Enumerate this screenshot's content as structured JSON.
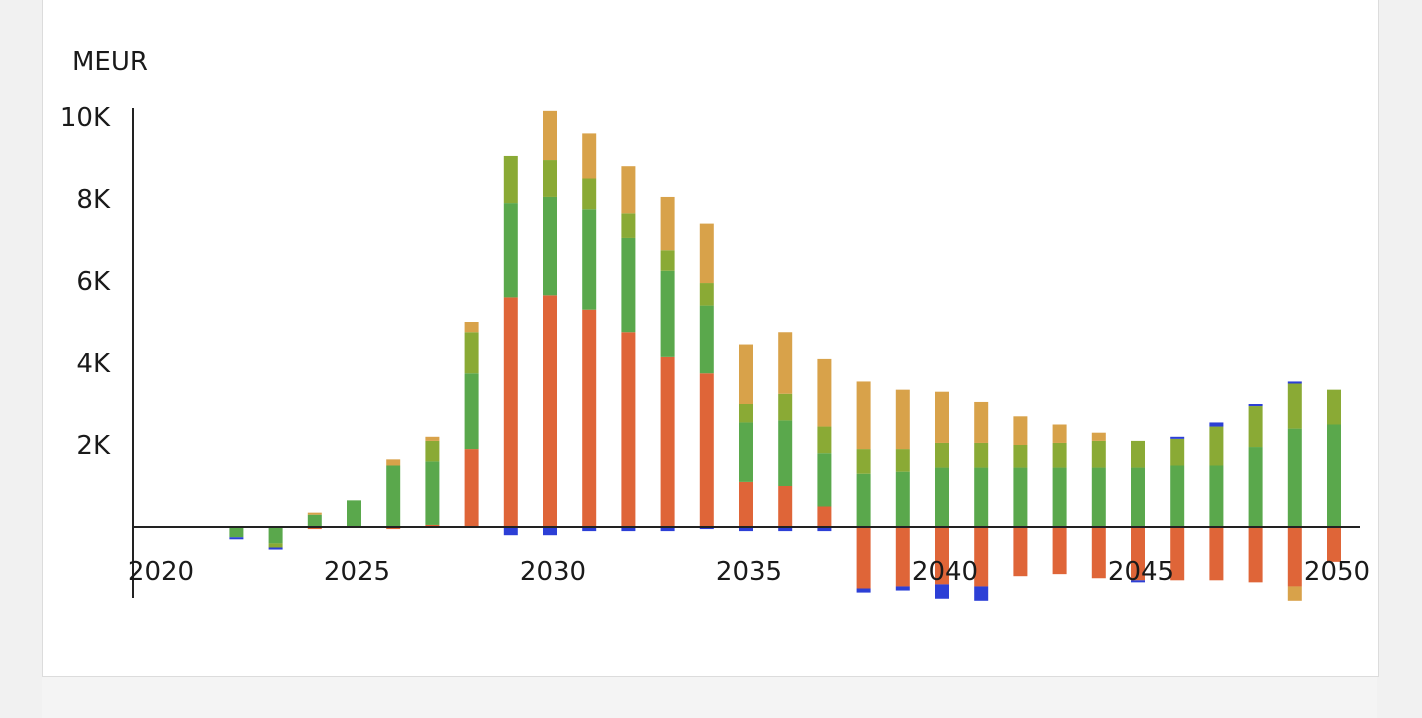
{
  "chart_data": {
    "type": "bar",
    "stacked": true,
    "ylabel": "MEUR",
    "y_ticks": [
      "2K",
      "4K",
      "6K",
      "8K",
      "10K"
    ],
    "y_tick_values": [
      2000,
      4000,
      6000,
      8000,
      10000
    ],
    "x_ticks": [
      "2020",
      "2025",
      "2030",
      "2035",
      "2040",
      "2045",
      "2050"
    ],
    "x_tick_values": [
      2020,
      2025,
      2030,
      2035,
      2040,
      2045,
      2050
    ],
    "xlim": [
      2020,
      2050
    ],
    "ylim": [
      -1800,
      10500
    ],
    "grid": false,
    "legend_position": "bottom",
    "x": [
      2022,
      2023,
      2024,
      2025,
      2026,
      2027,
      2028,
      2029,
      2030,
      2031,
      2032,
      2033,
      2034,
      2035,
      2036,
      2037,
      2038,
      2039,
      2040,
      2041,
      2042,
      2043,
      2044,
      2045,
      2046,
      2047,
      2048,
      2049,
      2050
    ],
    "series": [
      {
        "color": "#df6538",
        "values": [
          0,
          0,
          -50,
          0,
          -50,
          50,
          1900,
          5600,
          5650,
          5300,
          4750,
          4150,
          3750,
          1100,
          1000,
          500,
          -1500,
          -1450,
          -1400,
          -1450,
          -1200,
          -1150,
          -1250,
          -1300,
          -1300,
          -1300,
          -1350,
          -1450,
          -850
        ]
      },
      {
        "color": "#5aa84c",
        "values": [
          -250,
          -400,
          300,
          650,
          1500,
          1550,
          1850,
          2300,
          2400,
          2450,
          2300,
          2100,
          1650,
          1450,
          1600,
          1300,
          1300,
          1350,
          1450,
          1450,
          1450,
          1450,
          1450,
          1450,
          1500,
          1500,
          1950,
          2400,
          2500
        ]
      },
      {
        "color": "#8aaa35",
        "values": [
          0,
          -100,
          0,
          0,
          0,
          500,
          1000,
          1150,
          900,
          750,
          600,
          500,
          550,
          450,
          650,
          650,
          600,
          550,
          600,
          600,
          550,
          600,
          650,
          650,
          650,
          950,
          1000,
          1100,
          850
        ]
      },
      {
        "color": "#d8a24a",
        "values": [
          0,
          0,
          50,
          0,
          150,
          100,
          250,
          0,
          1200,
          1100,
          1150,
          1300,
          1450,
          1450,
          1500,
          1650,
          1650,
          1450,
          1250,
          1000,
          700,
          450,
          200,
          0,
          0,
          0,
          0,
          -350,
          0
        ]
      },
      {
        "color": "#2c3fd6",
        "values": [
          -50,
          -50,
          0,
          0,
          0,
          0,
          0,
          -200,
          -200,
          -100,
          -100,
          -100,
          -50,
          -100,
          -100,
          -100,
          -100,
          -100,
          -350,
          -350,
          0,
          0,
          0,
          -50,
          50,
          100,
          50,
          50,
          0
        ]
      }
    ]
  }
}
